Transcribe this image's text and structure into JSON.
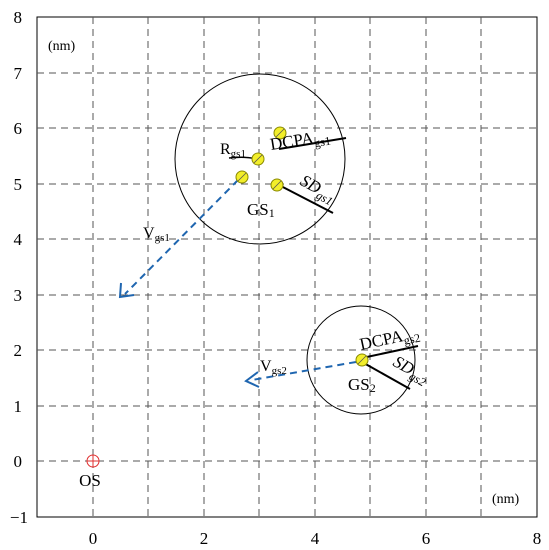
{
  "axes": {
    "x_ticks": [
      "0",
      "2",
      "4",
      "6",
      "8"
    ],
    "y_ticks": [
      "8",
      "7",
      "6",
      "5",
      "4",
      "3",
      "2",
      "1",
      "0",
      "−1"
    ],
    "x_unit": "(nm)",
    "y_unit": "(nm)"
  },
  "origin": {
    "label": "OS",
    "color": "#e03030"
  },
  "gs1": {
    "label_main": "GS",
    "label_sub": "1",
    "r_main": "R",
    "r_sub": "gs1",
    "v_main": "V",
    "v_sub": "gs1",
    "dcpa_main": "DCPA",
    "dcpa_sub": "gs1",
    "sd_main": "SD",
    "sd_sub": "gs1"
  },
  "gs2": {
    "label_main": "GS",
    "label_sub": "2",
    "v_main": "V",
    "v_sub": "gs2",
    "dcpa_main": "DCPA",
    "dcpa_sub": "gs2",
    "sd_main": "SD",
    "sd_sub": "gs2"
  },
  "colors": {
    "aircraft_fill": "#f2ee2a",
    "aircraft_stroke": "#8a8a00",
    "velocity": "#1f66b0"
  }
}
